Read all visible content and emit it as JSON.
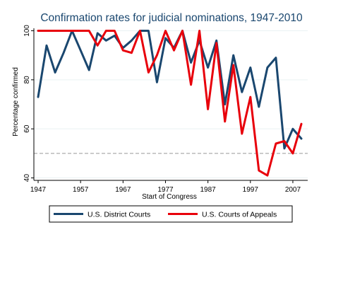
{
  "chart_data": {
    "type": "line",
    "title": "Confirmation rates for judicial nominations, 1947-2010",
    "xlabel": "Start of Congress",
    "ylabel": "Percentage confirmed",
    "xlim": [
      1946,
      2010.5
    ],
    "ylim": [
      39,
      101
    ],
    "xticks": [
      1947,
      1957,
      1967,
      1977,
      1987,
      1997,
      2007
    ],
    "yticks": [
      40,
      60,
      80,
      100
    ],
    "reference_line": {
      "y": 50,
      "style": "dashed",
      "color": "#999999"
    },
    "grid": true,
    "legend_position": "bottom",
    "series": [
      {
        "name": "U.S. District Courts",
        "color": "#1a476f",
        "x": [
          1947,
          1949,
          1951,
          1953,
          1955,
          1957,
          1959,
          1961,
          1963,
          1965,
          1967,
          1969,
          1971,
          1973,
          1975,
          1977,
          1979,
          1981,
          1983,
          1985,
          1987,
          1989,
          1991,
          1993,
          1995,
          1997,
          1999,
          2001,
          2003,
          2005,
          2007,
          2009
        ],
        "values": [
          73,
          94,
          83,
          91,
          100,
          92,
          84,
          99,
          96,
          98,
          93,
          96,
          100,
          100,
          79,
          97,
          93,
          100,
          87,
          96,
          85,
          96,
          70,
          90,
          75,
          85,
          69,
          85,
          89,
          52,
          60,
          56
        ]
      },
      {
        "name": "U.S. Courts of Appeals",
        "color": "#e8000b",
        "x": [
          1947,
          1949,
          1951,
          1953,
          1955,
          1957,
          1959,
          1961,
          1963,
          1965,
          1967,
          1969,
          1971,
          1973,
          1975,
          1977,
          1979,
          1981,
          1983,
          1985,
          1987,
          1989,
          1991,
          1993,
          1995,
          1997,
          1999,
          2001,
          2003,
          2005,
          2007,
          2009
        ],
        "values": [
          100,
          100,
          100,
          100,
          100,
          100,
          100,
          94,
          100,
          100,
          92,
          91,
          100,
          83,
          90,
          100,
          92,
          100,
          78,
          100,
          68,
          95,
          63,
          86,
          58,
          73,
          43,
          41,
          54,
          55,
          50,
          62
        ]
      }
    ]
  }
}
